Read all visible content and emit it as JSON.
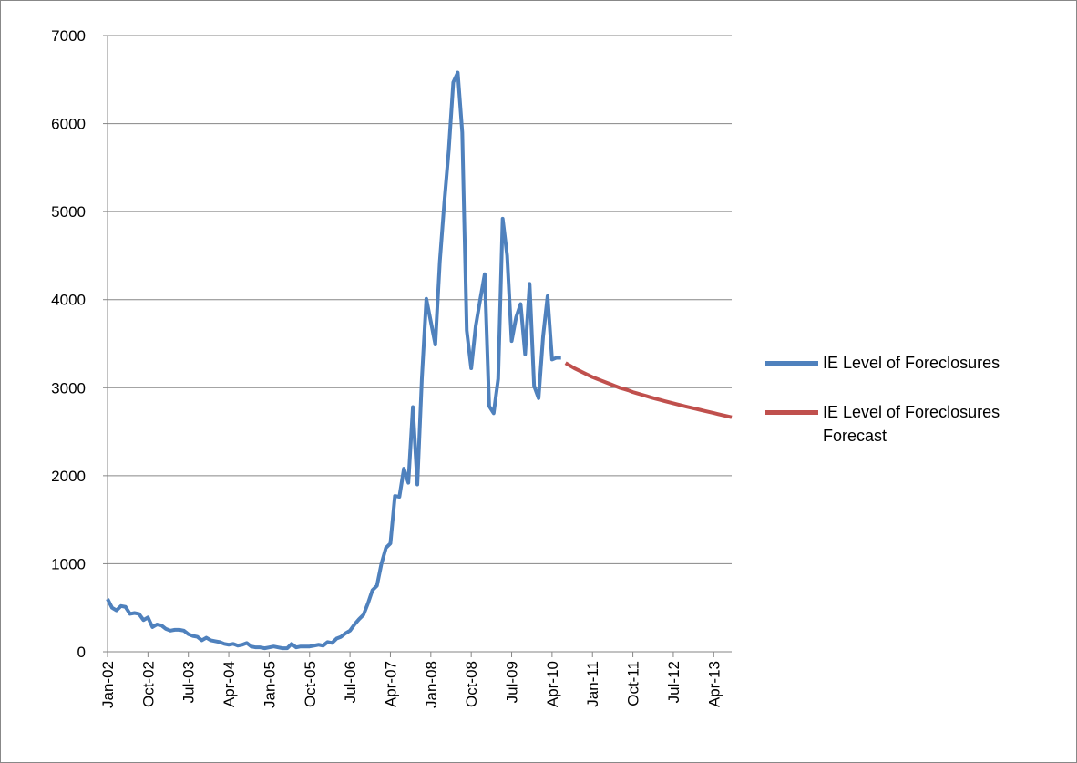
{
  "chart_data": {
    "type": "line",
    "categories": [
      "Jan-02",
      null,
      null,
      null,
      null,
      null,
      null,
      null,
      null,
      "Oct-02",
      null,
      null,
      null,
      null,
      null,
      null,
      null,
      null,
      "Jul-03",
      null,
      null,
      null,
      null,
      null,
      null,
      null,
      null,
      "Apr-04",
      null,
      null,
      null,
      null,
      null,
      null,
      null,
      null,
      "Jan-05",
      null,
      null,
      null,
      null,
      null,
      null,
      null,
      null,
      "Oct-05",
      null,
      null,
      null,
      null,
      null,
      null,
      null,
      null,
      "Jul-06",
      null,
      null,
      null,
      null,
      null,
      null,
      null,
      null,
      "Apr-07",
      null,
      null,
      null,
      null,
      null,
      null,
      null,
      null,
      "Jan-08",
      null,
      null,
      null,
      null,
      null,
      null,
      null,
      null,
      "Oct-08",
      null,
      null,
      null,
      null,
      null,
      null,
      null,
      null,
      "Jul-09",
      null,
      null,
      null,
      null,
      null,
      null,
      null,
      null,
      "Apr-10",
      null,
      null,
      null,
      null,
      null,
      null,
      null,
      null,
      "Jan-11",
      null,
      null,
      null,
      null,
      null,
      null,
      null,
      null,
      "Oct-11",
      null,
      null,
      null,
      null,
      null,
      null,
      null,
      null,
      "Jul-12",
      null,
      null,
      null,
      null,
      null,
      null,
      null,
      null,
      "Apr-13",
      null,
      null,
      null,
      null
    ],
    "series": [
      {
        "name": "IE Level of Foreclosures",
        "color": "#4f81bd",
        "values": [
          600,
          500,
          470,
          520,
          510,
          430,
          440,
          430,
          360,
          390,
          280,
          310,
          300,
          260,
          240,
          250,
          250,
          240,
          200,
          180,
          170,
          130,
          160,
          130,
          120,
          110,
          90,
          80,
          90,
          70,
          80,
          100,
          60,
          50,
          50,
          40,
          50,
          60,
          50,
          40,
          40,
          90,
          50,
          60,
          60,
          60,
          70,
          80,
          70,
          110,
          100,
          150,
          170,
          210,
          240,
          310,
          370,
          420,
          550,
          700,
          750,
          1000,
          1180,
          1230,
          1770,
          1760,
          2080,
          1920,
          2780,
          1900,
          3100,
          4010,
          3750,
          3490,
          4430,
          5100,
          5700,
          6470,
          6580,
          5900,
          3650,
          3220,
          3700,
          4000,
          4290,
          2790,
          2710,
          3100,
          4920,
          4500,
          3530,
          3800,
          3950,
          3380,
          4180,
          3020,
          2880,
          3580,
          4040,
          3320,
          3340,
          3340,
          null,
          null,
          null,
          null,
          null,
          null,
          null,
          null,
          null,
          null,
          null,
          null,
          null,
          null,
          null,
          null,
          null,
          null,
          null,
          null,
          null,
          null,
          null,
          null,
          null,
          null,
          null,
          null,
          null,
          null,
          null,
          null,
          null,
          null,
          null,
          null,
          null,
          null
        ]
      },
      {
        "name": "IE Level of Foreclosures Forecast",
        "color": "#c0504d",
        "values": [
          null,
          null,
          null,
          null,
          null,
          null,
          null,
          null,
          null,
          null,
          null,
          null,
          null,
          null,
          null,
          null,
          null,
          null,
          null,
          null,
          null,
          null,
          null,
          null,
          null,
          null,
          null,
          null,
          null,
          null,
          null,
          null,
          null,
          null,
          null,
          null,
          null,
          null,
          null,
          null,
          null,
          null,
          null,
          null,
          null,
          null,
          null,
          null,
          null,
          null,
          null,
          null,
          null,
          null,
          null,
          null,
          null,
          null,
          null,
          null,
          null,
          null,
          null,
          null,
          null,
          null,
          null,
          null,
          null,
          null,
          null,
          null,
          null,
          null,
          null,
          null,
          null,
          null,
          null,
          null,
          null,
          null,
          null,
          null,
          null,
          null,
          null,
          null,
          null,
          null,
          null,
          null,
          null,
          null,
          null,
          null,
          null,
          null,
          null,
          null,
          null,
          null,
          3280,
          3250,
          3220,
          3195,
          3170,
          3145,
          3120,
          3100,
          3080,
          3060,
          3040,
          3020,
          3000,
          2985,
          2970,
          2950,
          2935,
          2920,
          2905,
          2890,
          2876,
          2862,
          2848,
          2835,
          2822,
          2809,
          2796,
          2784,
          2772,
          2760,
          2748,
          2736,
          2724,
          2712,
          2700,
          2688,
          2676,
          2664
        ]
      }
    ],
    "ylim": [
      0,
      7000
    ],
    "yticks": [
      0,
      1000,
      2000,
      3000,
      4000,
      5000,
      6000,
      7000
    ],
    "grid": true,
    "legend": "right"
  }
}
